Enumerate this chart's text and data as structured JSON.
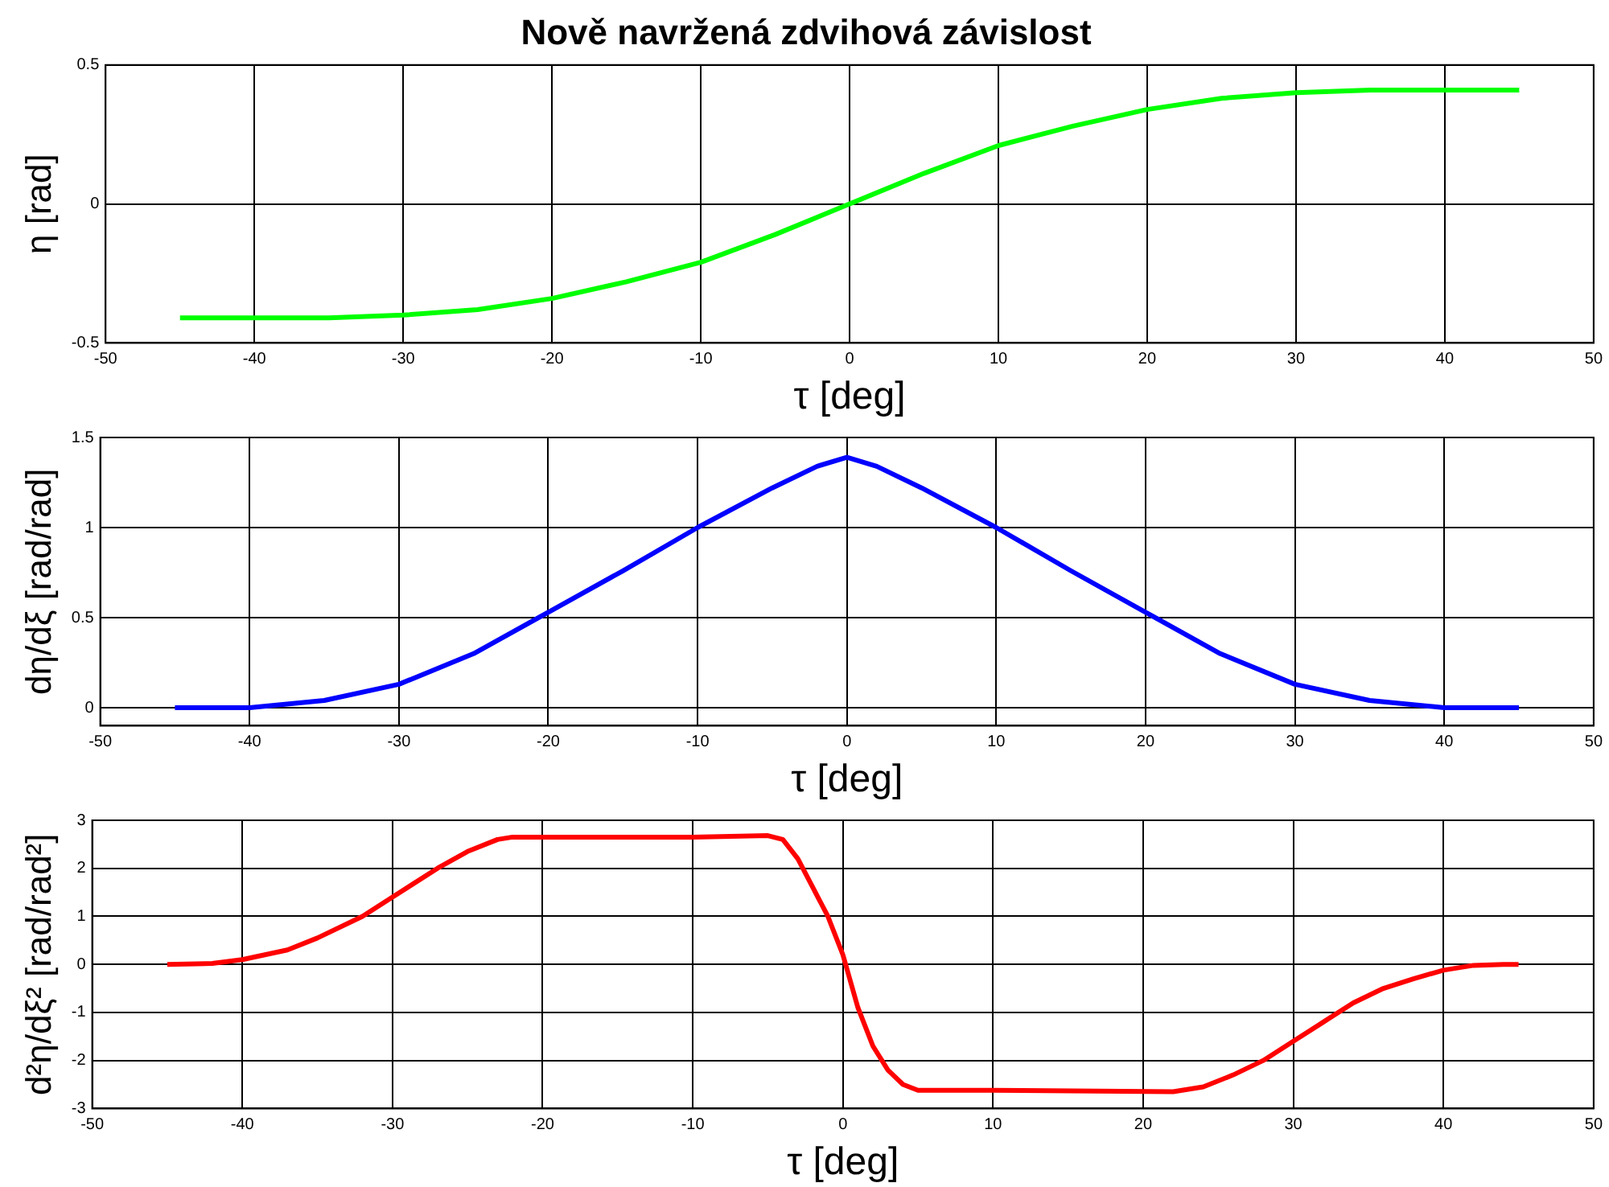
{
  "chart_data": [
    {
      "type": "line",
      "title": "Nově navržená zdvihová závislost",
      "xlabel": "τ [deg]",
      "ylabel": "η [rad]",
      "xlim": [
        -50,
        50
      ],
      "xticks": [
        -50,
        -40,
        -30,
        -20,
        -10,
        0,
        10,
        20,
        30,
        40,
        50
      ],
      "ylim": [
        -0.5,
        0.5
      ],
      "yticks": [
        -0.5,
        0,
        0.5
      ],
      "grid": true,
      "legend": false,
      "line_style": "solid",
      "x": [
        -45,
        -40,
        -35,
        -30,
        -25,
        -20,
        -15,
        -10,
        -5,
        0,
        5,
        10,
        15,
        20,
        25,
        30,
        35,
        40,
        45
      ],
      "series": [
        {
          "color": "#00ff00",
          "values": [
            -0.41,
            -0.41,
            -0.41,
            -0.4,
            -0.38,
            -0.34,
            -0.28,
            -0.21,
            -0.11,
            0,
            0.11,
            0.21,
            0.28,
            0.34,
            0.38,
            0.4,
            0.41,
            0.41,
            0.41
          ]
        }
      ]
    },
    {
      "type": "line",
      "xlabel": "τ [deg]",
      "ylabel": "dη/dξ [rad/rad]",
      "xlim": [
        -50,
        50
      ],
      "xticks": [
        -50,
        -40,
        -30,
        -20,
        -10,
        0,
        10,
        20,
        30,
        40,
        50
      ],
      "ylim": [
        -0.1,
        1.5
      ],
      "yticks": [
        0,
        0.5,
        1,
        1.5
      ],
      "grid": true,
      "legend": false,
      "line_style": "solid",
      "x": [
        -45,
        -40,
        -35,
        -30,
        -25,
        -20,
        -15,
        -10,
        -5,
        -2,
        0,
        2,
        5,
        10,
        15,
        20,
        25,
        30,
        35,
        40,
        45
      ],
      "series": [
        {
          "color": "#0000ff",
          "values": [
            0,
            0,
            0.04,
            0.13,
            0.3,
            0.53,
            0.76,
            1.0,
            1.22,
            1.34,
            1.39,
            1.34,
            1.22,
            1.0,
            0.76,
            0.53,
            0.3,
            0.13,
            0.04,
            0,
            0
          ]
        }
      ]
    },
    {
      "type": "line",
      "xlabel": "τ [deg]",
      "ylabel": "d²η/dξ² [rad/rad²]",
      "xlim": [
        -50,
        50
      ],
      "xticks": [
        -50,
        -40,
        -30,
        -20,
        -10,
        0,
        10,
        20,
        30,
        40,
        50
      ],
      "ylim": [
        -3,
        3
      ],
      "yticks": [
        -3,
        -2,
        -1,
        0,
        1,
        2,
        3
      ],
      "grid": true,
      "legend": false,
      "line_style": "solid",
      "x": [
        -45,
        -42,
        -40,
        -37,
        -35,
        -32,
        -30,
        -27,
        -25,
        -23,
        -22,
        -10,
        -5,
        -4,
        -3,
        -2,
        -1,
        0,
        1,
        2,
        3,
        4,
        5,
        10,
        22,
        24,
        26,
        28,
        30,
        32,
        34,
        36,
        38,
        40,
        42,
        44,
        45
      ],
      "series": [
        {
          "color": "#ff0000",
          "values": [
            0,
            0.02,
            0.1,
            0.3,
            0.55,
            1.0,
            1.4,
            2.0,
            2.35,
            2.6,
            2.65,
            2.65,
            2.68,
            2.6,
            2.2,
            1.6,
            1.0,
            0.2,
            -0.9,
            -1.7,
            -2.2,
            -2.5,
            -2.62,
            -2.62,
            -2.65,
            -2.55,
            -2.3,
            -2.0,
            -1.6,
            -1.2,
            -0.8,
            -0.5,
            -0.3,
            -0.12,
            -0.02,
            0,
            0
          ]
        }
      ]
    }
  ]
}
